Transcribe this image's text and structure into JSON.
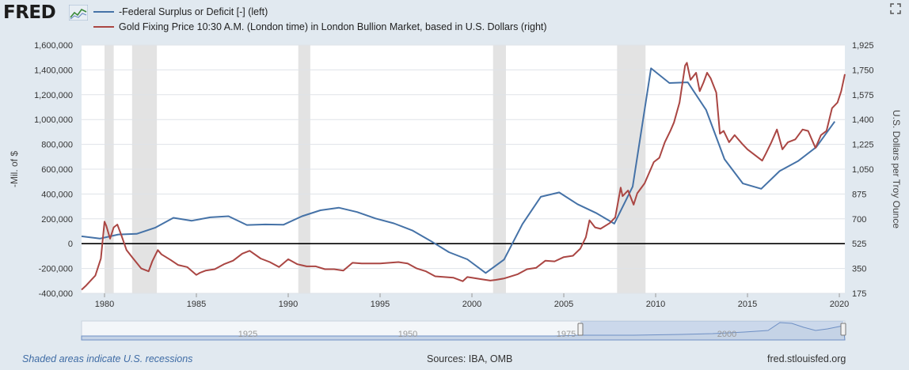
{
  "header": {
    "logo_text": "FRED",
    "logo_icon": "fred-chart-icon",
    "fullscreen_icon": "fullscreen-icon"
  },
  "colors": {
    "background": "#e1e9f0",
    "plot_background": "#ffffff",
    "recession_shading": "#e3e3e3",
    "grid": "#dfe3e8",
    "zero_line": "#000000",
    "navigator_fill": "#c5d3e6",
    "navigator_line": "#6e8fc4"
  },
  "chart_data": {
    "type": "line",
    "x_ticks": [
      "1980",
      "1985",
      "1990",
      "1995",
      "2000",
      "2005",
      "2010",
      "2015",
      "2020"
    ],
    "xlim": [
      1978.75,
      2020.3
    ],
    "y_left": {
      "label": "-Mil. of $",
      "ticks": [
        "1,600,000",
        "1,400,000",
        "1,200,000",
        "1,000,000",
        "800,000",
        "600,000",
        "400,000",
        "200,000",
        "0",
        "-200,000",
        "-400,000"
      ],
      "range": [
        -400000,
        1600000
      ]
    },
    "y_right": {
      "label": "U.S. Dollars per Troy Ounce",
      "ticks": [
        "1,925",
        "1,750",
        "1,575",
        "1,400",
        "1,225",
        "1,050",
        "875",
        "700",
        "525",
        "350",
        "175"
      ],
      "range": [
        175,
        1925
      ]
    },
    "recessions": [
      [
        1980.0,
        1980.5
      ],
      [
        1981.5,
        1982.85
      ],
      [
        1990.55,
        1991.2
      ],
      [
        2001.15,
        2001.85
      ],
      [
        2007.9,
        2009.45
      ]
    ],
    "series": [
      {
        "name": "-Federal Surplus or Deficit [-] (left)",
        "axis": "left",
        "color": "#4572a7",
        "x": [
          1978.75,
          1979.75,
          1980.75,
          1981.75,
          1982.75,
          1983.75,
          1984.75,
          1985.75,
          1986.75,
          1987.75,
          1988.75,
          1989.75,
          1990.75,
          1991.75,
          1992.75,
          1993.75,
          1994.75,
          1995.75,
          1996.75,
          1997.75,
          1998.75,
          1999.75,
          2000.75,
          2001.75,
          2002.75,
          2003.75,
          2004.75,
          2005.75,
          2006.75,
          2007.75,
          2008.75,
          2009.75,
          2010.75,
          2011.75,
          2012.75,
          2013.75,
          2014.75,
          2015.75,
          2016.75,
          2017.75,
          2018.75,
          2019.75
        ],
        "values": [
          59000,
          41000,
          74000,
          79000,
          128000,
          208000,
          185000,
          212000,
          221000,
          150000,
          155000,
          153000,
          221000,
          269000,
          290000,
          255000,
          203000,
          164000,
          107000,
          22000,
          -69000,
          -126000,
          -236000,
          -128000,
          158000,
          378000,
          413000,
          318000,
          248000,
          161000,
          459000,
          1413000,
          1294000,
          1300000,
          1077000,
          680000,
          485000,
          442000,
          585000,
          665000,
          779000,
          984000
        ]
      },
      {
        "name": "Gold Fixing Price 10:30 A.M. (London time) in London Bullion Market, based in U.S. Dollars (right)",
        "axis": "right",
        "color": "#aa4643",
        "x": [
          1978.75,
          1979.0,
          1979.5,
          1979.8,
          1980.0,
          1980.1,
          1980.3,
          1980.5,
          1980.7,
          1980.9,
          1981.2,
          1981.5,
          1982.0,
          1982.4,
          1982.6,
          1982.9,
          1983.1,
          1983.6,
          1984.0,
          1984.5,
          1985.0,
          1985.2,
          1985.5,
          1986.0,
          1986.5,
          1987.0,
          1987.5,
          1987.9,
          1988.5,
          1989.0,
          1989.5,
          1990.0,
          1990.5,
          1991.0,
          1991.5,
          1992.0,
          1992.5,
          1993.0,
          1993.5,
          1994.0,
          1995.0,
          1996.0,
          1996.5,
          1997.0,
          1997.5,
          1998.0,
          1998.5,
          1999.0,
          1999.5,
          1999.75,
          2000.0,
          2000.5,
          2001.0,
          2001.3,
          2001.75,
          2002.0,
          2002.5,
          2003.0,
          2003.5,
          2004.0,
          2004.5,
          2005.0,
          2005.5,
          2005.9,
          2006.2,
          2006.4,
          2006.7,
          2007.0,
          2007.5,
          2007.8,
          2008.1,
          2008.2,
          2008.5,
          2008.8,
          2009.0,
          2009.4,
          2009.9,
          2010.2,
          2010.5,
          2010.8,
          2011.0,
          2011.3,
          2011.6,
          2011.7,
          2011.9,
          2012.2,
          2012.4,
          2012.6,
          2012.8,
          2013.0,
          2013.3,
          2013.5,
          2013.7,
          2014.0,
          2014.3,
          2014.7,
          2015.0,
          2015.4,
          2015.8,
          2016.0,
          2016.3,
          2016.6,
          2016.9,
          2017.2,
          2017.6,
          2018.0,
          2018.3,
          2018.7,
          2019.0,
          2019.3,
          2019.6,
          2019.9,
          2020.1,
          2020.3
        ],
        "values": [
          200,
          230,
          300,
          420,
          680,
          650,
          560,
          640,
          660,
          590,
          480,
          430,
          350,
          330,
          400,
          480,
          450,
          410,
          375,
          360,
          305,
          320,
          335,
          345,
          380,
          405,
          455,
          475,
          420,
          395,
          360,
          415,
          380,
          365,
          365,
          345,
          345,
          335,
          390,
          385,
          385,
          395,
          385,
          350,
          330,
          295,
          290,
          285,
          260,
          290,
          285,
          275,
          265,
          270,
          280,
          290,
          310,
          345,
          355,
          405,
          400,
          430,
          440,
          490,
          570,
          690,
          640,
          630,
          670,
          710,
          920,
          860,
          900,
          800,
          880,
          950,
          1100,
          1130,
          1240,
          1320,
          1380,
          1520,
          1780,
          1800,
          1680,
          1730,
          1600,
          1660,
          1730,
          1690,
          1590,
          1300,
          1320,
          1240,
          1290,
          1230,
          1190,
          1150,
          1110,
          1160,
          1240,
          1330,
          1190,
          1240,
          1260,
          1330,
          1320,
          1200,
          1290,
          1320,
          1480,
          1520,
          1600,
          1720
        ]
      }
    ],
    "navigator": {
      "ticks": [
        "1925",
        "1950",
        "1975",
        "2000"
      ]
    }
  },
  "footer": {
    "note": "Shaded areas indicate U.S. recessions",
    "sources": "Sources: IBA, OMB",
    "site": "fred.stlouisfed.org"
  }
}
